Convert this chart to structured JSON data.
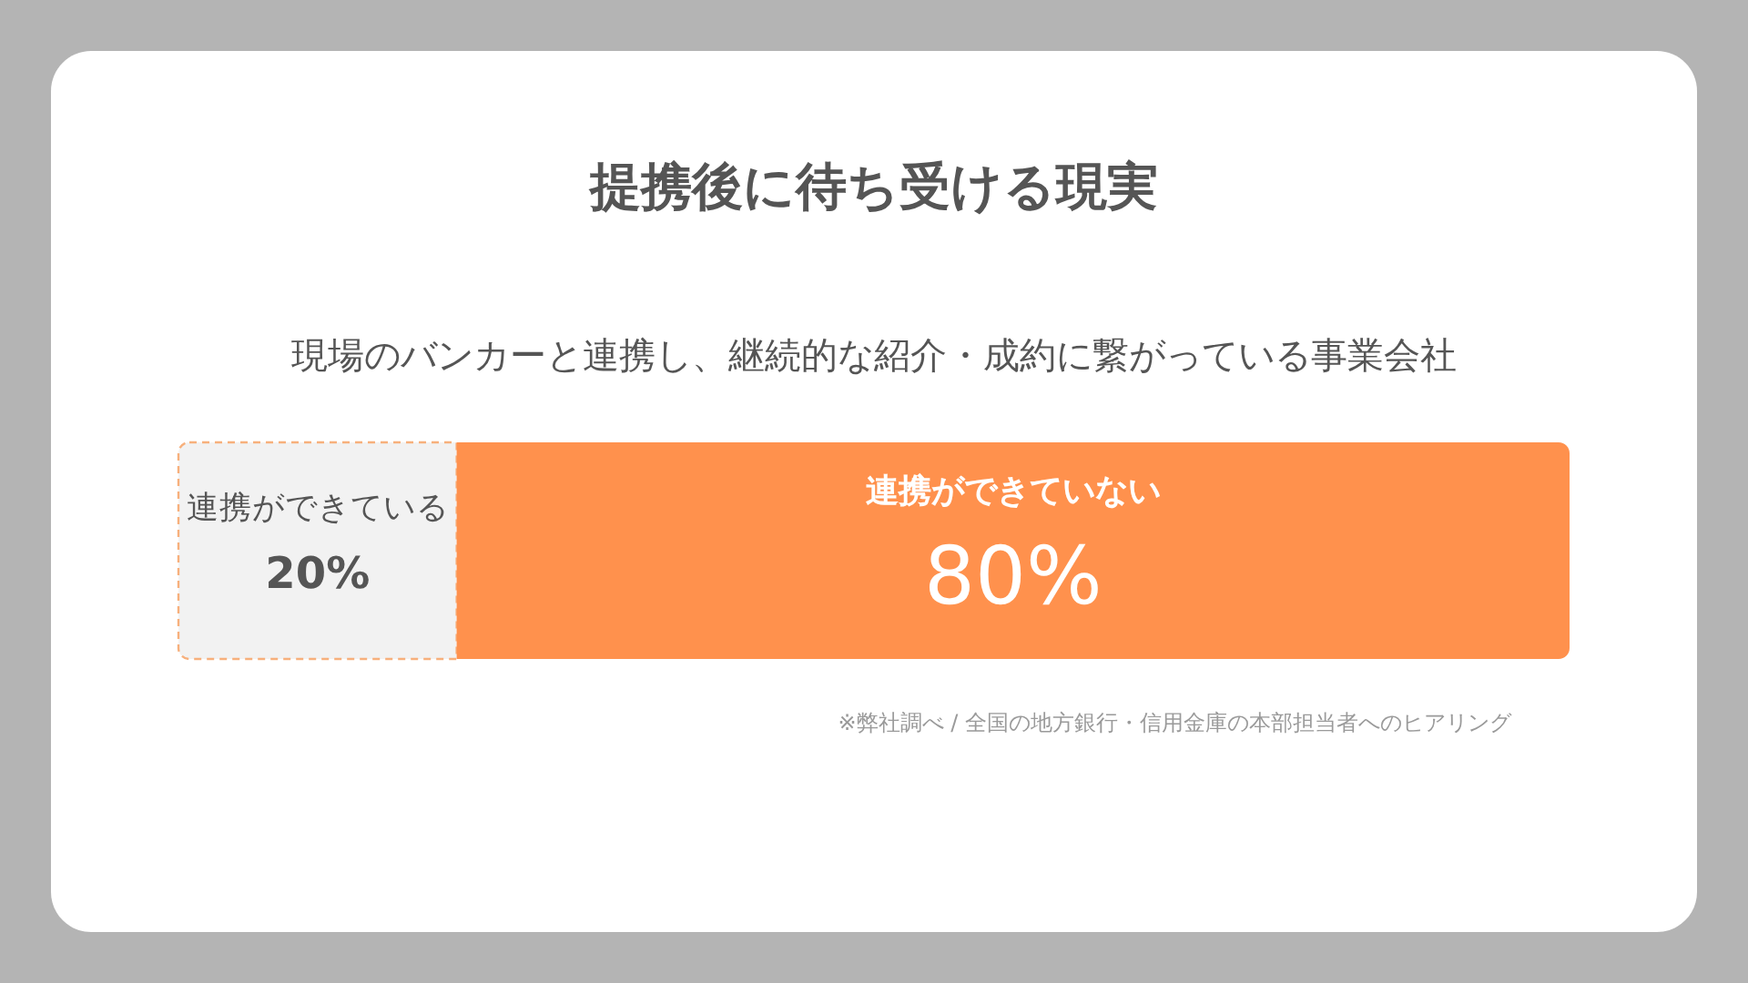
{
  "chart_data": {
    "type": "bar",
    "title": "提携後に待ち受ける現実",
    "subtitle": "現場のバンカーと連携し、継続的な紹介・成約に繋がっている事業会社",
    "orientation": "horizontal",
    "stacked": true,
    "categories": [
      null
    ],
    "series": [
      {
        "name": "連携ができている",
        "color": "#f2f2f2",
        "values": [
          20
        ],
        "value_labels": [
          "20%"
        ]
      },
      {
        "name": "連携ができていない",
        "color": "#ff914d",
        "values": [
          80
        ],
        "value_labels": [
          "80%"
        ]
      }
    ],
    "xlim": [
      0,
      100
    ],
    "legend": false,
    "annotations": [
      "※弊社調べ / 全国の地方銀行・信用金庫の本部担当者へのヒアリング"
    ]
  }
}
